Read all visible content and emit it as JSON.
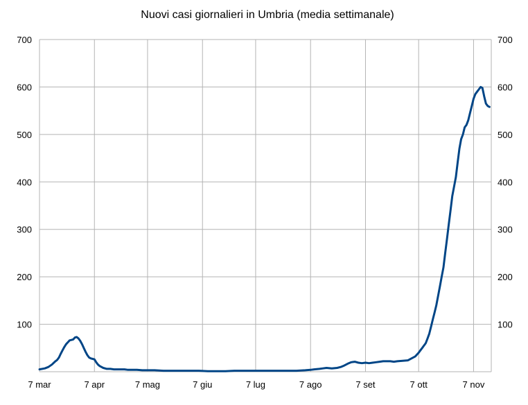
{
  "chart_data": {
    "type": "line",
    "title": "Nuovi casi giornalieri in Umbria (media settimanale)",
    "xlabel": "",
    "ylabel": "",
    "ylim": [
      0,
      700
    ],
    "y_ticks": [
      100,
      200,
      300,
      400,
      500,
      600,
      700
    ],
    "x_ticks": [
      {
        "label": "7 mar",
        "day": 0
      },
      {
        "label": "7 apr",
        "day": 31
      },
      {
        "label": "7 mag",
        "day": 61
      },
      {
        "label": "7 giu",
        "day": 92
      },
      {
        "label": "7 lug",
        "day": 122
      },
      {
        "label": "7 ago",
        "day": 153
      },
      {
        "label": "7 set",
        "day": 184
      },
      {
        "label": "7 ott",
        "day": 214
      },
      {
        "label": "7 nov",
        "day": 245
      }
    ],
    "xlim": [
      0,
      255
    ],
    "secondary_y_axis": true,
    "grid": true,
    "line_color": "#004586",
    "series": [
      {
        "x": [
          0,
          3,
          5,
          7,
          9,
          10,
          11,
          12,
          13,
          14,
          15,
          16,
          17,
          18,
          19,
          20,
          21,
          22,
          23,
          24,
          25,
          26,
          27,
          28,
          29,
          30,
          31,
          32,
          33,
          34,
          35,
          36,
          38,
          40,
          42,
          45,
          48,
          50,
          52,
          55,
          58,
          61,
          65,
          70,
          75,
          80,
          85,
          90,
          95,
          100,
          105,
          110,
          115,
          120,
          125,
          130,
          135,
          140,
          145,
          150,
          153,
          155,
          158,
          160,
          162,
          165,
          168,
          170,
          172,
          174,
          176,
          178,
          180,
          182,
          184,
          186,
          188,
          190,
          192,
          194,
          196,
          198,
          200,
          202,
          205,
          208,
          210,
          212,
          214,
          215,
          216,
          217,
          218,
          219,
          220,
          221,
          222,
          223,
          224,
          225,
          226,
          227,
          228,
          229,
          230,
          231,
          232,
          233,
          234,
          235,
          236,
          237,
          238,
          239,
          240,
          241,
          242,
          243,
          244,
          245,
          246,
          247,
          248,
          249,
          250,
          251,
          252,
          253,
          254
        ],
        "y": [
          5,
          7,
          10,
          15,
          22,
          25,
          30,
          38,
          45,
          52,
          58,
          62,
          66,
          67,
          68,
          72,
          73,
          70,
          65,
          58,
          50,
          42,
          35,
          30,
          28,
          27,
          26,
          20,
          15,
          12,
          10,
          8,
          6,
          6,
          5,
          5,
          5,
          4,
          4,
          4,
          3,
          3,
          3,
          2,
          2,
          2,
          2,
          2,
          1,
          1,
          1,
          2,
          2,
          2,
          2,
          2,
          2,
          2,
          2,
          3,
          4,
          5,
          6,
          7,
          8,
          7,
          8,
          10,
          13,
          17,
          20,
          21,
          19,
          18,
          19,
          18,
          19,
          20,
          21,
          22,
          22,
          22,
          21,
          22,
          23,
          24,
          28,
          32,
          40,
          45,
          50,
          55,
          60,
          70,
          80,
          95,
          110,
          125,
          140,
          160,
          180,
          200,
          220,
          250,
          280,
          310,
          340,
          370,
          390,
          410,
          440,
          470,
          490,
          500,
          515,
          520,
          530,
          545,
          560,
          575,
          585,
          590,
          595,
          600,
          598,
          580,
          565,
          560,
          558
        ]
      }
    ]
  }
}
